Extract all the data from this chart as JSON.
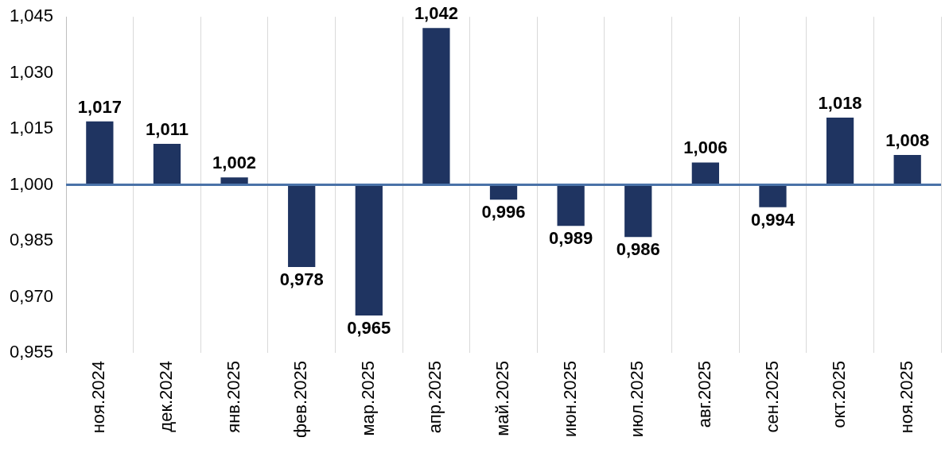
{
  "chart_data": {
    "type": "bar",
    "categories": [
      "ноя.2024",
      "дек.2024",
      "янв.2025",
      "фев.2025",
      "мар.2025",
      "апр.2025",
      "май.2025",
      "июн.2025",
      "июл.2025",
      "авг.2025",
      "сен.2025",
      "окт.2025",
      "ноя.2025"
    ],
    "base": [
      1,
      1,
      1,
      1,
      1,
      1,
      1,
      1,
      1,
      1,
      1,
      1,
      1
    ],
    "values": [
      0.017,
      0.011,
      0.002,
      -0.022,
      -0.035,
      0.042,
      -0.004,
      -0.011,
      -0.014,
      0.006,
      -0.006,
      0.018,
      0.008
    ],
    "value_labels": [
      "1,017",
      "1,011",
      "1,002",
      "0,978",
      "0,965",
      "1,042",
      "0,996",
      "0,989",
      "0,986",
      "1,006",
      "0,994",
      "1,018",
      "1,008"
    ],
    "color": "#1f3461",
    "ylim": [
      0.955,
      1.045
    ],
    "yticks": [
      {
        "value": 0.955,
        "label": "0,955"
      },
      {
        "value": 0.97,
        "label": "0,970"
      },
      {
        "value": 0.985,
        "label": "0,985"
      },
      {
        "value": 1.0,
        "label": "1,000"
      },
      {
        "value": 1.015,
        "label": "1,015"
      },
      {
        "value": 1.03,
        "label": "1,030"
      },
      {
        "value": 1.045,
        "label": "1,045"
      }
    ],
    "ref_lines": [
      {
        "axis": "y",
        "value": 1.0,
        "color": "#4a72a8"
      }
    ],
    "grid": "x",
    "legend": false
  }
}
